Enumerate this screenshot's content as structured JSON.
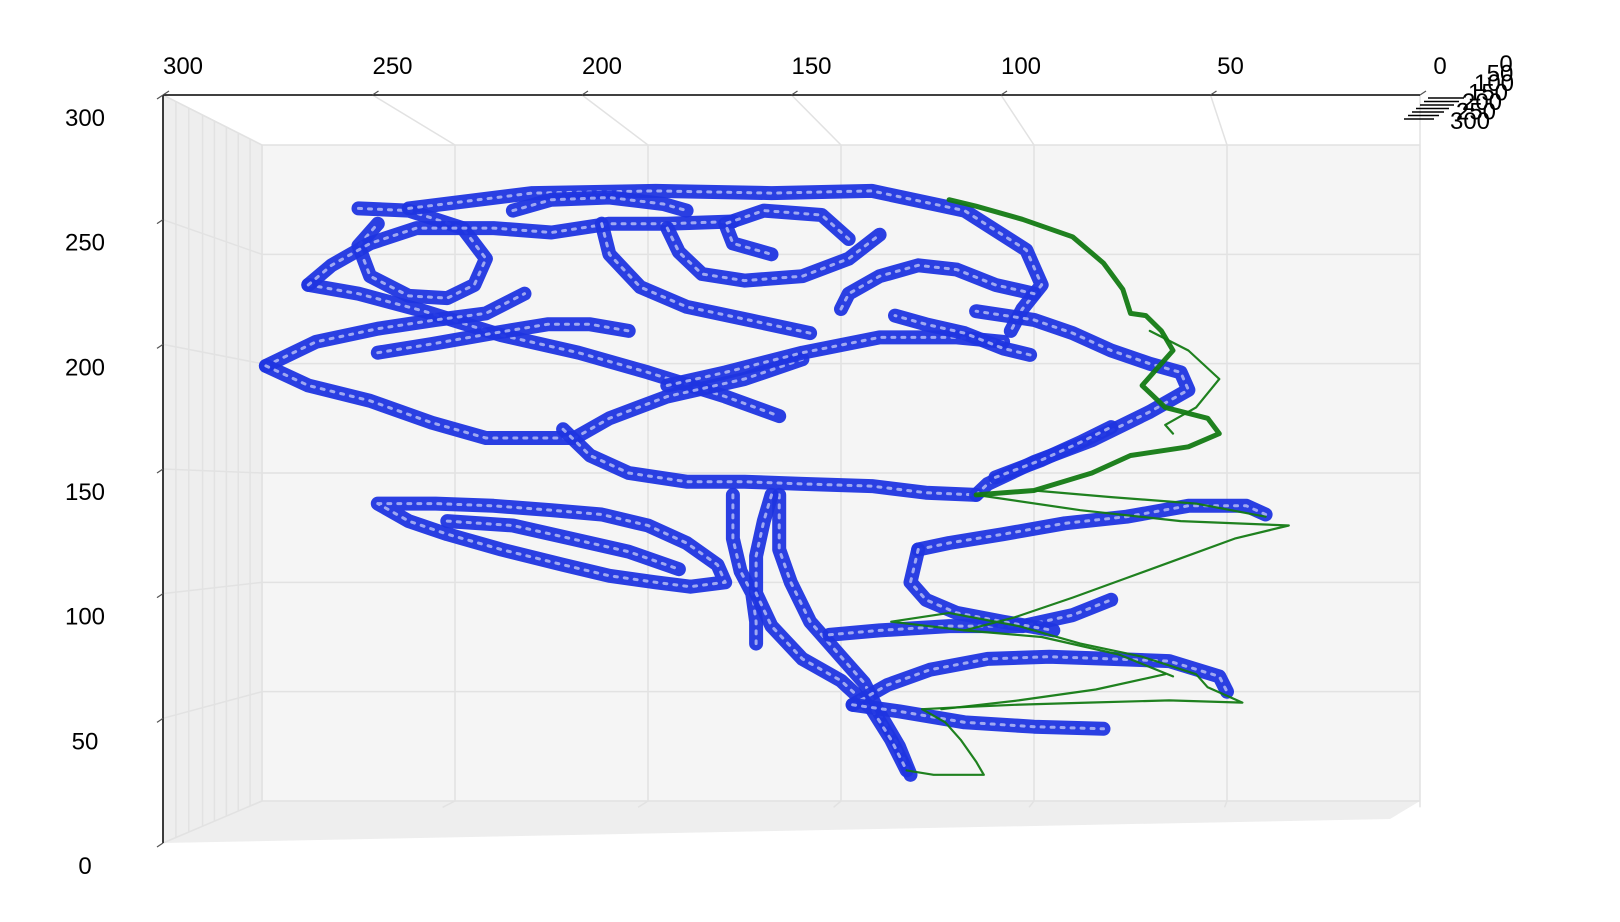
{
  "chart_data": {
    "type": "3d-line",
    "title": "",
    "x_axis": {
      "ticks": [
        "300",
        "250",
        "200",
        "150",
        "100",
        "50",
        "0"
      ]
    },
    "y_axis": {
      "ticks": [
        "300",
        "250",
        "200",
        "150",
        "100",
        "50",
        "0"
      ]
    },
    "z_axis": {
      "ticks": [
        "0",
        "50",
        "100",
        "150",
        "200",
        "250",
        "300"
      ]
    },
    "ranges": {
      "x": [
        300,
        0
      ],
      "y": [
        0,
        300
      ],
      "z": [
        0,
        300
      ]
    },
    "grid": true,
    "series": [
      {
        "color": "#1f35e0",
        "strokes": [
          [
            [
              275,
              271
            ],
            [
              262,
              270
            ],
            [
              248,
              262
            ],
            [
              242,
              248
            ],
            [
              245,
              236
            ],
            [
              252,
              230
            ],
            [
              262,
              231
            ],
            [
              272,
              240
            ],
            [
              275,
              254
            ],
            [
              270,
              264
            ]
          ],
          [
            [
              262,
              271
            ],
            [
              230,
              278
            ],
            [
              198,
              279
            ],
            [
              168,
              278
            ],
            [
              142,
              279
            ],
            [
              118,
              270
            ],
            [
              102,
              252
            ],
            [
              98,
              236
            ],
            [
              103,
              225
            ],
            [
              106,
              215
            ]
          ],
          [
            [
              288,
              236
            ],
            [
              275,
              232
            ],
            [
              258,
              224
            ],
            [
              238,
              213
            ],
            [
              218,
              205
            ],
            [
              200,
              196
            ],
            [
              180,
              185
            ],
            [
              166,
              176
            ]
          ],
          [
            [
              288,
              236
            ],
            [
              282,
              245
            ],
            [
              272,
              255
            ],
            [
              260,
              262
            ],
            [
              240,
              262
            ],
            [
              225,
              260
            ],
            [
              210,
              264
            ],
            [
              195,
              264
            ],
            [
              178,
              265
            ]
          ],
          [
            [
              212,
              264
            ],
            [
              210,
              250
            ],
            [
              202,
              235
            ],
            [
              190,
              226
            ],
            [
              174,
              220
            ],
            [
              158,
              214
            ]
          ],
          [
            [
              195,
              262
            ],
            [
              192,
              251
            ],
            [
              186,
              241
            ],
            [
              175,
              238
            ],
            [
              160,
              240
            ],
            [
              148,
              248
            ],
            [
              140,
              259
            ]
          ],
          [
            [
              148,
              257
            ],
            [
              155,
              268
            ],
            [
              170,
              270
            ],
            [
              180,
              264
            ],
            [
              178,
              255
            ],
            [
              168,
              250
            ]
          ],
          [
            [
              270,
              205
            ],
            [
              256,
              209
            ],
            [
              240,
              214
            ],
            [
              226,
              218
            ],
            [
              215,
              218
            ],
            [
              205,
              215
            ]
          ],
          [
            [
              299,
              199
            ],
            [
              286,
              210
            ],
            [
              270,
              216
            ],
            [
              255,
              220
            ],
            [
              242,
              223
            ],
            [
              232,
              232
            ]
          ],
          [
            [
              299,
              199
            ],
            [
              288,
              190
            ],
            [
              272,
              183
            ],
            [
              256,
              173
            ],
            [
              242,
              166
            ],
            [
              230,
              166
            ],
            [
              219,
              166
            ],
            [
              210,
              175
            ],
            [
              195,
              185
            ],
            [
              175,
              193
            ],
            [
              160,
              202
            ]
          ],
          [
            [
              222,
              170
            ],
            [
              215,
              158
            ],
            [
              205,
              150
            ],
            [
              190,
              146
            ],
            [
              175,
              146
            ],
            [
              160,
              145
            ],
            [
              142,
              144
            ],
            [
              128,
              141
            ],
            [
              115,
              140
            ]
          ],
          [
            [
              115,
              140
            ],
            [
              112,
              145
            ],
            [
              100,
              155
            ],
            [
              85,
              165
            ],
            [
              70,
              178
            ],
            [
              60,
              188
            ],
            [
              62,
              196
            ],
            [
              70,
              200
            ],
            [
              80,
              206
            ],
            [
              90,
              214
            ],
            [
              100,
              220
            ],
            [
              115,
              224
            ]
          ],
          [
            [
              195,
              190
            ],
            [
              180,
              196
            ],
            [
              160,
              205
            ],
            [
              140,
              212
            ],
            [
              120,
              212
            ],
            [
              108,
              210
            ]
          ],
          [
            [
              101,
              204
            ],
            [
              108,
              207
            ],
            [
              118,
              214
            ],
            [
              128,
              218
            ],
            [
              136,
              222
            ]
          ],
          [
            [
              178,
              140
            ],
            [
              178,
              130
            ],
            [
              178,
              120
            ],
            [
              176,
              105
            ],
            [
              173,
              95
            ],
            [
              172,
              82
            ],
            [
              172,
              72
            ]
          ],
          [
            [
              166,
              140
            ],
            [
              166,
              128
            ],
            [
              166,
              115
            ],
            [
              163,
              100
            ],
            [
              158,
              82
            ],
            [
              150,
              66
            ],
            [
              144,
              54
            ],
            [
              140,
              40
            ],
            [
              135,
              25
            ],
            [
              132,
              12
            ]
          ],
          [
            [
              168,
              140
            ],
            [
              170,
              128
            ],
            [
              172,
              112
            ],
            [
              172,
              95
            ],
            [
              168,
              80
            ],
            [
              160,
              65
            ],
            [
              150,
              55
            ],
            [
              142,
              42
            ],
            [
              137,
              28
            ],
            [
              133,
              14
            ]
          ],
          [
            [
              153,
              76
            ],
            [
              140,
              78
            ],
            [
              122,
              80
            ],
            [
              103,
              80
            ],
            [
              90,
              85
            ],
            [
              80,
              92
            ]
          ],
          [
            [
              270,
              136
            ],
            [
              255,
              136
            ],
            [
              240,
              135
            ],
            [
              225,
              133
            ],
            [
              212,
              131
            ],
            [
              200,
              126
            ],
            [
              190,
              118
            ],
            [
              182,
              108
            ],
            [
              180,
              100
            ],
            [
              189,
              98
            ],
            [
              198,
              100
            ],
            [
              210,
              103
            ],
            [
              222,
              108
            ],
            [
              238,
              115
            ],
            [
              252,
              122
            ],
            [
              262,
              128
            ],
            [
              270,
              136
            ]
          ],
          [
            [
              252,
              128
            ],
            [
              235,
              126
            ],
            [
              220,
              120
            ],
            [
              205,
              114
            ],
            [
              192,
              106
            ]
          ],
          [
            [
              130,
              115
            ],
            [
              122,
              118
            ],
            [
              108,
              122
            ],
            [
              92,
              127
            ],
            [
              76,
              130
            ],
            [
              60,
              135
            ],
            [
              45,
              135
            ],
            [
              40,
              131
            ]
          ],
          [
            [
              130,
              115
            ],
            [
              132,
              100
            ],
            [
              128,
              92
            ],
            [
              120,
              86
            ],
            [
              108,
              82
            ],
            [
              95,
              78
            ]
          ],
          [
            [
              147,
              44
            ],
            [
              138,
              53
            ],
            [
              127,
              60
            ],
            [
              112,
              65
            ],
            [
              96,
              66
            ],
            [
              80,
              65
            ],
            [
              65,
              64
            ],
            [
              52,
              57
            ],
            [
              50,
              50
            ]
          ],
          [
            [
              147,
              44
            ],
            [
              135,
              41
            ],
            [
              118,
              36
            ],
            [
              100,
              34
            ],
            [
              82,
              33
            ]
          ],
          [
            [
              110,
              148
            ],
            [
              98,
              156
            ],
            [
              88,
              164
            ],
            [
              80,
              171
            ]
          ],
          [
            [
              150,
              225
            ],
            [
              148,
              232
            ],
            [
              140,
              240
            ],
            [
              130,
              245
            ],
            [
              120,
              243
            ],
            [
              110,
              236
            ],
            [
              100,
              232
            ]
          ],
          [
            [
              235,
              270
            ],
            [
              225,
              275
            ],
            [
              210,
              276
            ],
            [
              196,
              273
            ],
            [
              190,
              270
            ]
          ]
        ]
      },
      {
        "color": "#137a13",
        "strokes": [
          [
            [
              122,
              275
            ],
            [
              115,
              272
            ],
            [
              103,
              266
            ],
            [
              90,
              258
            ],
            [
              82,
              246
            ],
            [
              77,
              234
            ],
            [
              75,
              223
            ],
            [
              71,
              222
            ],
            [
              67,
              215
            ],
            [
              64,
              206
            ],
            [
              68,
              198
            ],
            [
              72,
              190
            ],
            [
              66,
              180
            ],
            [
              55,
              175
            ],
            [
              52,
              168
            ],
            [
              60,
              162
            ],
            [
              75,
              158
            ],
            [
              85,
              150
            ],
            [
              100,
              142
            ],
            [
              115,
              140
            ]
          ],
          [
            [
              115,
              140
            ],
            [
              88,
              133
            ],
            [
              62,
              128
            ],
            [
              34,
              126
            ],
            [
              48,
              120
            ],
            [
              62,
              111
            ],
            [
              76,
              102
            ],
            [
              90,
              93
            ],
            [
              105,
              84
            ],
            [
              118,
              78
            ],
            [
              137,
              82
            ],
            [
              122,
              86
            ],
            [
              104,
              80
            ],
            [
              88,
              72
            ],
            [
              72,
              66
            ],
            [
              58,
              58
            ],
            [
              55,
              52
            ],
            [
              46,
              45
            ],
            [
              65,
              46
            ],
            [
              86,
              45
            ],
            [
              105,
              44
            ],
            [
              118,
              43
            ],
            [
              129,
              42
            ],
            [
              123,
              36
            ],
            [
              119,
              28
            ],
            [
              115,
              18
            ],
            [
              113,
              12
            ],
            [
              126,
              12
            ],
            [
              133,
              14
            ]
          ],
          [
            [
              70,
              215
            ],
            [
              60,
              206
            ],
            [
              52,
              193
            ],
            [
              58,
              180
            ],
            [
              66,
              172
            ],
            [
              64,
              168
            ]
          ],
          [
            [
              100,
              142
            ],
            [
              80,
              139
            ],
            [
              58,
              136
            ],
            [
              40,
              130
            ]
          ],
          [
            [
              118,
              78
            ],
            [
              98,
              75
            ],
            [
              78,
              67
            ],
            [
              64,
              57
            ]
          ],
          [
            [
              124,
              42
            ],
            [
              104,
              46
            ],
            [
              84,
              51
            ],
            [
              66,
              58
            ]
          ]
        ]
      }
    ]
  }
}
